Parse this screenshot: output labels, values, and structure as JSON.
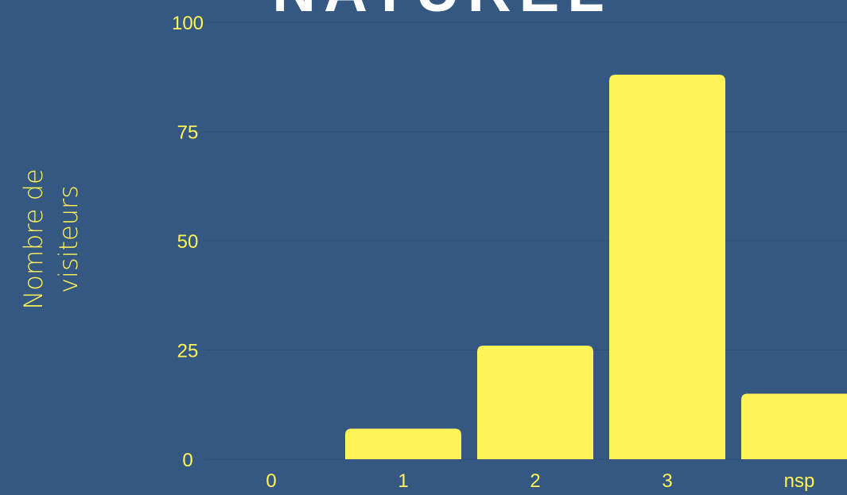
{
  "chart_data": {
    "type": "bar",
    "title": "NATUREL",
    "ylabel": "Nombre de visiteurs",
    "categories": [
      "0",
      "1",
      "2",
      "3",
      "nsp"
    ],
    "values": [
      0,
      7,
      26,
      88,
      15
    ],
    "color": "#fff457",
    "ylim": [
      0,
      100
    ],
    "yticks": [
      0,
      25,
      50,
      75,
      100
    ],
    "grid": true
  }
}
